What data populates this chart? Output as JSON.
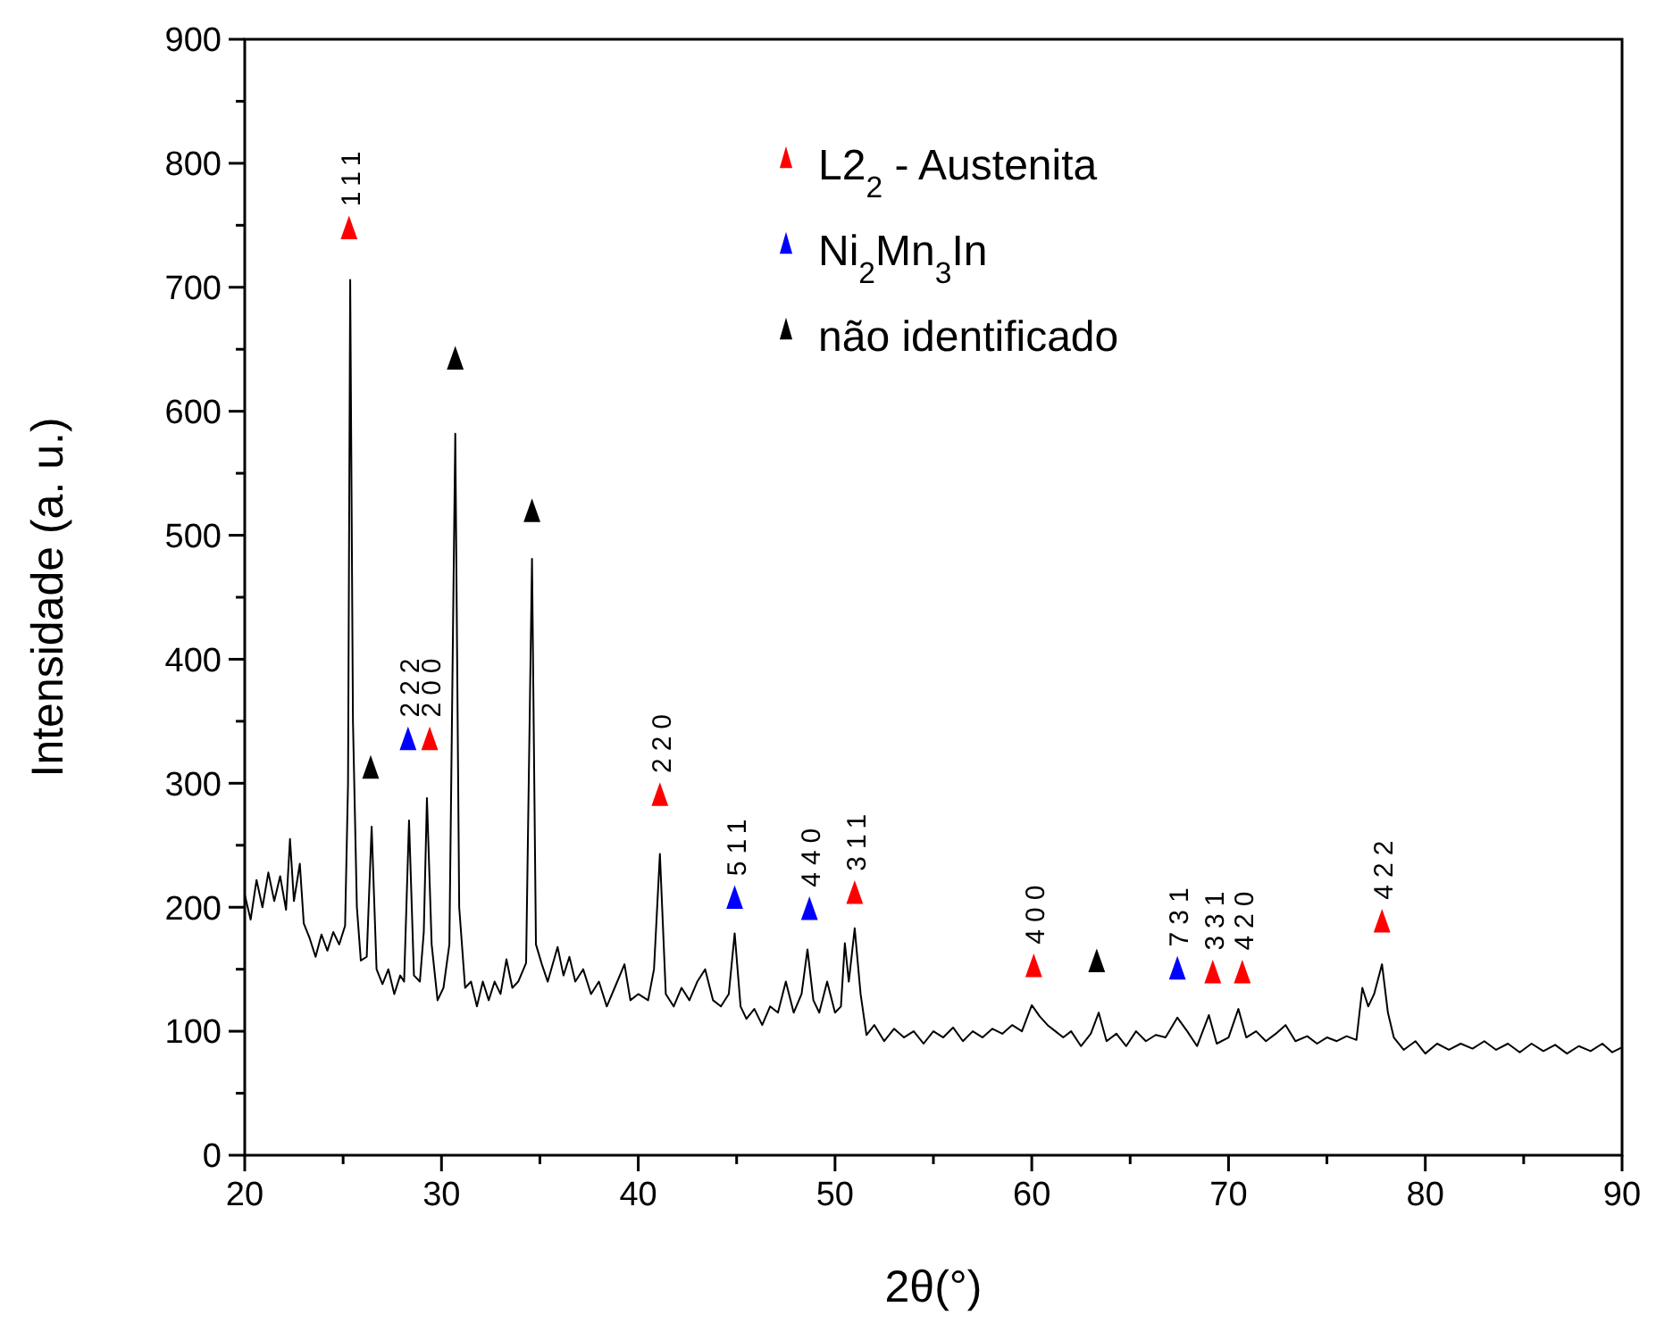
{
  "chart_data": {
    "type": "line",
    "xlabel": "2θ(°)",
    "ylabel": "Intensidade (a. u.)",
    "xlim": [
      20,
      90
    ],
    "ylim": [
      0,
      900
    ],
    "xticks": [
      20,
      {
        "value": 25,
        "label": null
      },
      30,
      {
        "value": 35,
        "label": null
      },
      40,
      {
        "value": 45,
        "label": null
      },
      50,
      {
        "value": 55,
        "label": null
      },
      60,
      {
        "value": 65,
        "label": null
      },
      70,
      {
        "value": 75,
        "label": null
      },
      80,
      {
        "value": 85,
        "label": null
      },
      90
    ],
    "yticks": [
      0,
      {
        "value": 50,
        "label": null
      },
      100,
      {
        "value": 150,
        "label": null
      },
      200,
      {
        "value": 250,
        "label": null
      },
      300,
      {
        "value": 350,
        "label": null
      },
      400,
      {
        "value": 450,
        "label": null
      },
      500,
      {
        "value": 550,
        "label": null
      },
      600,
      {
        "value": 650,
        "label": null
      },
      700,
      {
        "value": 750,
        "label": null
      },
      800,
      {
        "value": 850,
        "label": null
      },
      900
    ],
    "grid": false,
    "legend": "top",
    "marker": "triangle",
    "series": [
      {
        "color": "#000000",
        "marker": "none",
        "x": [
          20,
          20.3,
          20.6,
          20.9,
          21.2,
          21.5,
          21.8,
          22.1,
          22.3,
          22.5,
          22.8,
          23.0,
          23.3,
          23.6,
          23.9,
          24.2,
          24.5,
          24.8,
          25.1,
          25.25,
          25.36,
          25.5,
          25.7,
          25.9,
          26.2,
          26.45,
          26.7,
          27.0,
          27.3,
          27.6,
          27.9,
          28.1,
          28.35,
          28.6,
          28.9,
          29.1,
          29.26,
          29.5,
          29.8,
          30.1,
          30.4,
          30.7,
          30.9,
          31.2,
          31.5,
          31.8,
          32.1,
          32.4,
          32.7,
          33.0,
          33.3,
          33.6,
          33.9,
          34.3,
          34.6,
          34.8,
          35.1,
          35.4,
          35.9,
          36.2,
          36.5,
          36.8,
          37.2,
          37.6,
          38.0,
          38.4,
          38.8,
          39.3,
          39.6,
          40.0,
          40.5,
          40.8,
          41.1,
          41.4,
          41.8,
          42.2,
          42.6,
          43.0,
          43.4,
          43.8,
          44.2,
          44.6,
          44.9,
          45.2,
          45.5,
          45.9,
          46.3,
          46.7,
          47.1,
          47.5,
          47.9,
          48.3,
          48.6,
          48.9,
          49.2,
          49.6,
          50.0,
          50.3,
          50.5,
          50.7,
          51.0,
          51.3,
          51.6,
          52.0,
          52.5,
          53.0,
          53.5,
          54.0,
          54.5,
          55.0,
          55.5,
          56.0,
          56.5,
          57.0,
          57.5,
          58.0,
          58.5,
          59.0,
          59.5,
          60.0,
          60.4,
          60.8,
          61.2,
          61.6,
          62.0,
          62.5,
          63.0,
          63.4,
          63.8,
          64.3,
          64.8,
          65.3,
          65.8,
          66.3,
          66.8,
          67.4,
          67.9,
          68.4,
          69.0,
          69.4,
          70.0,
          70.5,
          70.9,
          71.4,
          71.9,
          72.4,
          72.9,
          73.4,
          74.0,
          74.5,
          75.0,
          75.5,
          76.0,
          76.5,
          76.8,
          77.1,
          77.4,
          77.8,
          78.1,
          78.4,
          78.9,
          79.5,
          80.0,
          80.6,
          81.2,
          81.8,
          82.4,
          83.0,
          83.6,
          84.2,
          84.8,
          85.4,
          86.0,
          86.6,
          87.2,
          87.8,
          88.4,
          89.0,
          89.5,
          90.0
        ],
        "values": [
          210,
          190,
          222,
          200,
          228,
          205,
          225,
          198,
          255,
          205,
          235,
          187,
          175,
          160,
          178,
          165,
          180,
          170,
          185,
          300,
          706,
          350,
          200,
          157,
          160,
          265,
          150,
          138,
          150,
          130,
          145,
          140,
          270,
          145,
          140,
          180,
          288,
          170,
          125,
          135,
          170,
          582,
          200,
          135,
          140,
          120,
          140,
          125,
          140,
          130,
          158,
          135,
          140,
          155,
          481,
          170,
          154,
          140,
          168,
          145,
          160,
          140,
          150,
          130,
          140,
          120,
          135,
          154,
          125,
          130,
          125,
          150,
          243,
          130,
          120,
          135,
          125,
          140,
          150,
          125,
          120,
          130,
          179,
          120,
          110,
          118,
          105,
          120,
          115,
          140,
          115,
          130,
          166,
          125,
          115,
          140,
          115,
          120,
          171,
          140,
          183,
          130,
          97,
          105,
          92,
          102,
          95,
          100,
          90,
          100,
          95,
          103,
          92,
          100,
          95,
          102,
          98,
          105,
          100,
          121,
          112,
          105,
          100,
          95,
          100,
          88,
          98,
          115,
          92,
          98,
          88,
          100,
          92,
          97,
          95,
          111,
          100,
          88,
          113,
          90,
          95,
          118,
          95,
          100,
          92,
          98,
          105,
          92,
          96,
          90,
          95,
          92,
          96,
          93,
          135,
          120,
          130,
          154,
          115,
          95,
          85,
          92,
          82,
          90,
          85,
          90,
          86,
          92,
          85,
          90,
          83,
          90,
          84,
          89,
          82,
          88,
          84,
          90,
          83,
          87
        ]
      },
      {
        "type": "scatter",
        "name": "L2$_{2}$ - Austenita",
        "color": "#ff0000",
        "x": [
          25.3,
          29.4,
          41.1,
          51.0,
          60.1,
          69.2,
          70.7,
          77.8
        ],
        "values": [
          745,
          333,
          288,
          209,
          150,
          145,
          145,
          186
        ]
      },
      {
        "type": "scatter",
        "name": "Ni$_{2}$Mn$_{3}$In",
        "color": "#0000ff",
        "x": [
          28.3,
          44.9,
          48.7,
          67.4
        ],
        "values": [
          333,
          205,
          196,
          148
        ]
      },
      {
        "type": "scatter",
        "name": "não identificado",
        "color": "#000000",
        "x": [
          26.4,
          30.7,
          34.6,
          63.3
        ],
        "values": [
          310,
          640,
          517,
          154
        ]
      }
    ],
    "annotations": [
      {
        "text": "111",
        "x": 25.3,
        "y": 745
      },
      {
        "text": "222",
        "x": 28.3,
        "y": 333
      },
      {
        "text": "200",
        "x": 29.4,
        "y": 333
      },
      {
        "text": "220",
        "x": 41.1,
        "y": 288
      },
      {
        "text": "511",
        "x": 44.9,
        "y": 205
      },
      {
        "text": "440",
        "x": 48.7,
        "y": 196
      },
      {
        "text": "311",
        "x": 51.0,
        "y": 209
      },
      {
        "text": "400",
        "x": 60.1,
        "y": 150
      },
      {
        "text": "731",
        "x": 67.4,
        "y": 148
      },
      {
        "text": "331",
        "x": 69.2,
        "y": 145
      },
      {
        "text": "420",
        "x": 70.7,
        "y": 145
      },
      {
        "text": "422",
        "x": 77.8,
        "y": 186
      }
    ]
  }
}
